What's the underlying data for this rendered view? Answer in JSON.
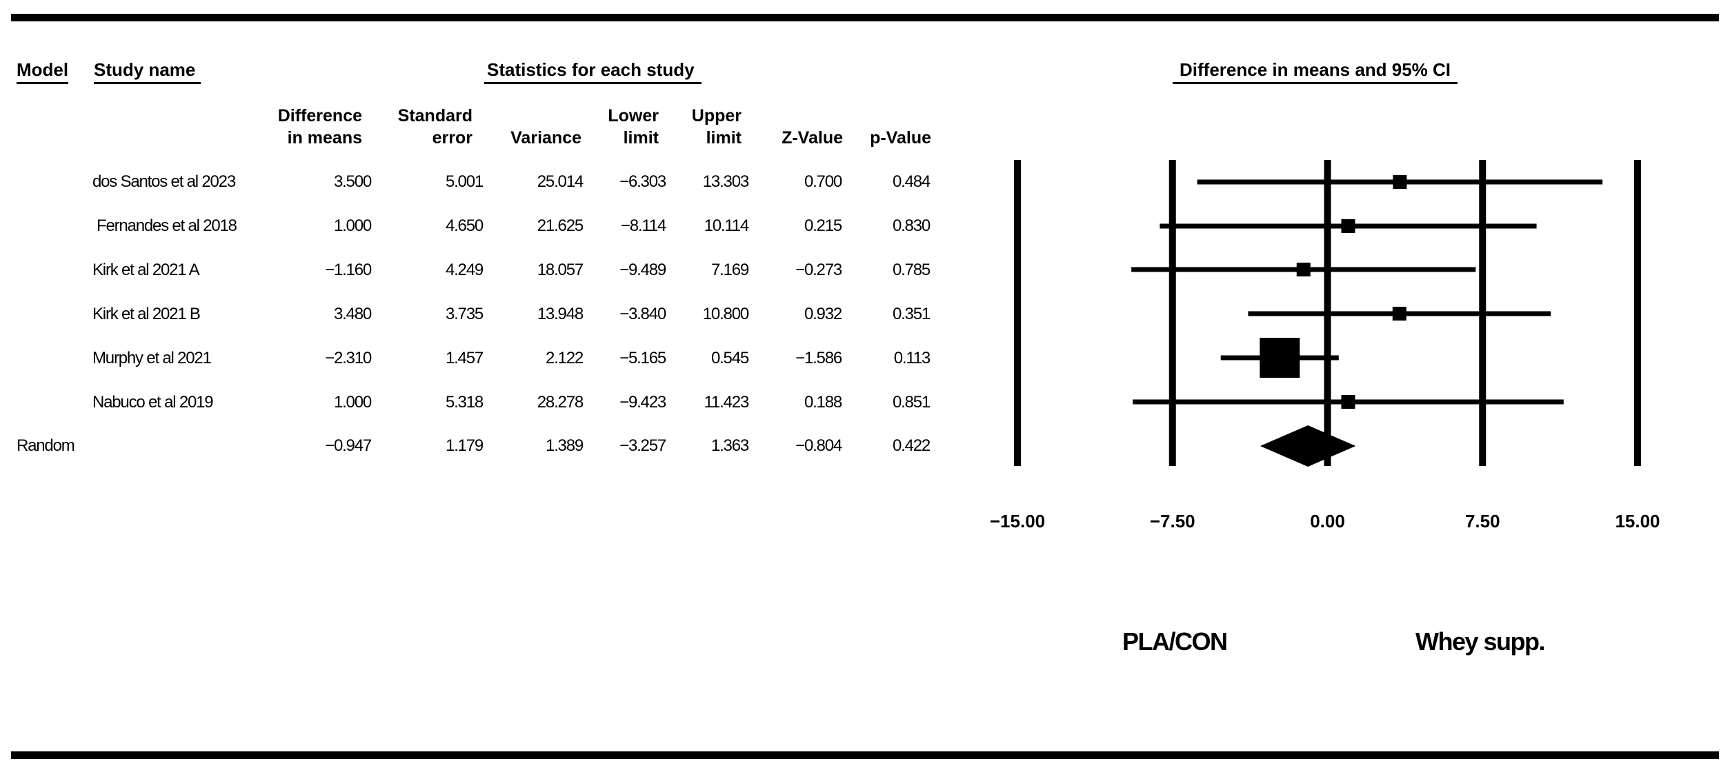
{
  "headers": {
    "model": "Model",
    "study_name": "Study name",
    "stats_group": "Statistics for each study",
    "plot_title": "Difference in means and 95% CI"
  },
  "columns": [
    {
      "key": "diff",
      "line1": "Difference",
      "line2": "in means"
    },
    {
      "key": "se",
      "line1": "Standard",
      "line2": "error"
    },
    {
      "key": "var",
      "line1": "",
      "line2": "Variance"
    },
    {
      "key": "lower",
      "line1": "Lower",
      "line2": "limit"
    },
    {
      "key": "upper",
      "line1": "Upper",
      "line2": "limit"
    },
    {
      "key": "z",
      "line1": "",
      "line2": "Z-Value"
    },
    {
      "key": "p",
      "line1": "",
      "line2": "p-Value"
    }
  ],
  "rows": [
    {
      "model": "",
      "name": "dos Santos et al 2023",
      "diff": "3.500",
      "se": "5.001",
      "var": "25.014",
      "lower": "−6.303",
      "upper": "13.303",
      "z": "0.700",
      "p": "0.484"
    },
    {
      "model": "",
      "name": "Fernandes et al 2018",
      "diff": "1.000",
      "se": "4.650",
      "var": "21.625",
      "lower": "−8.114",
      "upper": "10.114",
      "z": "0.215",
      "p": "0.830"
    },
    {
      "model": "",
      "name": "Kirk et al 2021 A",
      "diff": "−1.160",
      "se": "4.249",
      "var": "18.057",
      "lower": "−9.489",
      "upper": "7.169",
      "z": "−0.273",
      "p": "0.785"
    },
    {
      "model": "",
      "name": "Kirk et al 2021 B",
      "diff": "3.480",
      "se": "3.735",
      "var": "13.948",
      "lower": "−3.840",
      "upper": "10.800",
      "z": "0.932",
      "p": "0.351"
    },
    {
      "model": "",
      "name": "Murphy et al 2021",
      "diff": "−2.310",
      "se": "1.457",
      "var": "2.122",
      "lower": "−5.165",
      "upper": "0.545",
      "z": "−1.586",
      "p": "0.113"
    },
    {
      "model": "",
      "name": "Nabuco et al 2019",
      "diff": "1.000",
      "se": "5.318",
      "var": "28.278",
      "lower": "−9.423",
      "upper": "11.423",
      "z": "0.188",
      "p": "0.851"
    },
    {
      "model": "Random",
      "name": "",
      "diff": "−0.947",
      "se": "1.179",
      "var": "1.389",
      "lower": "−3.257",
      "upper": "1.363",
      "z": "−0.804",
      "p": "0.422"
    }
  ],
  "side_labels": {
    "left": "PLA/CON",
    "right": "Whey supp."
  },
  "chart_data": {
    "type": "forest",
    "title": "Difference in means and 95% CI",
    "xlim": [
      -15,
      15
    ],
    "xticks": [
      -15,
      -7.5,
      0,
      7.5,
      15
    ],
    "tick_labels": [
      "−15.00",
      "−7.50",
      "0.00",
      "7.50",
      "15.00"
    ],
    "studies": [
      {
        "name": "dos Santos et al 2023",
        "estimate": 3.5,
        "lower": -6.303,
        "upper": 13.303,
        "weight": 0.04
      },
      {
        "name": "Fernandes et al 2018",
        "estimate": 1.0,
        "lower": -8.114,
        "upper": 10.114,
        "weight": 0.0462
      },
      {
        "name": "Kirk et al 2021 A",
        "estimate": -1.16,
        "lower": -9.489,
        "upper": 7.169,
        "weight": 0.0554
      },
      {
        "name": "Kirk et al 2021 B",
        "estimate": 3.48,
        "lower": -3.84,
        "upper": 10.8,
        "weight": 0.0717
      },
      {
        "name": "Murphy et al 2021",
        "estimate": -2.31,
        "lower": -5.165,
        "upper": 0.545,
        "weight": 0.4713
      },
      {
        "name": "Nabuco et al 2019",
        "estimate": 1.0,
        "lower": -9.423,
        "upper": 11.423,
        "weight": 0.0354
      }
    ],
    "summary": {
      "name": "Random",
      "estimate": -0.947,
      "lower": -3.257,
      "upper": 1.363
    },
    "left_label": "PLA/CON",
    "right_label": "Whey supp."
  }
}
